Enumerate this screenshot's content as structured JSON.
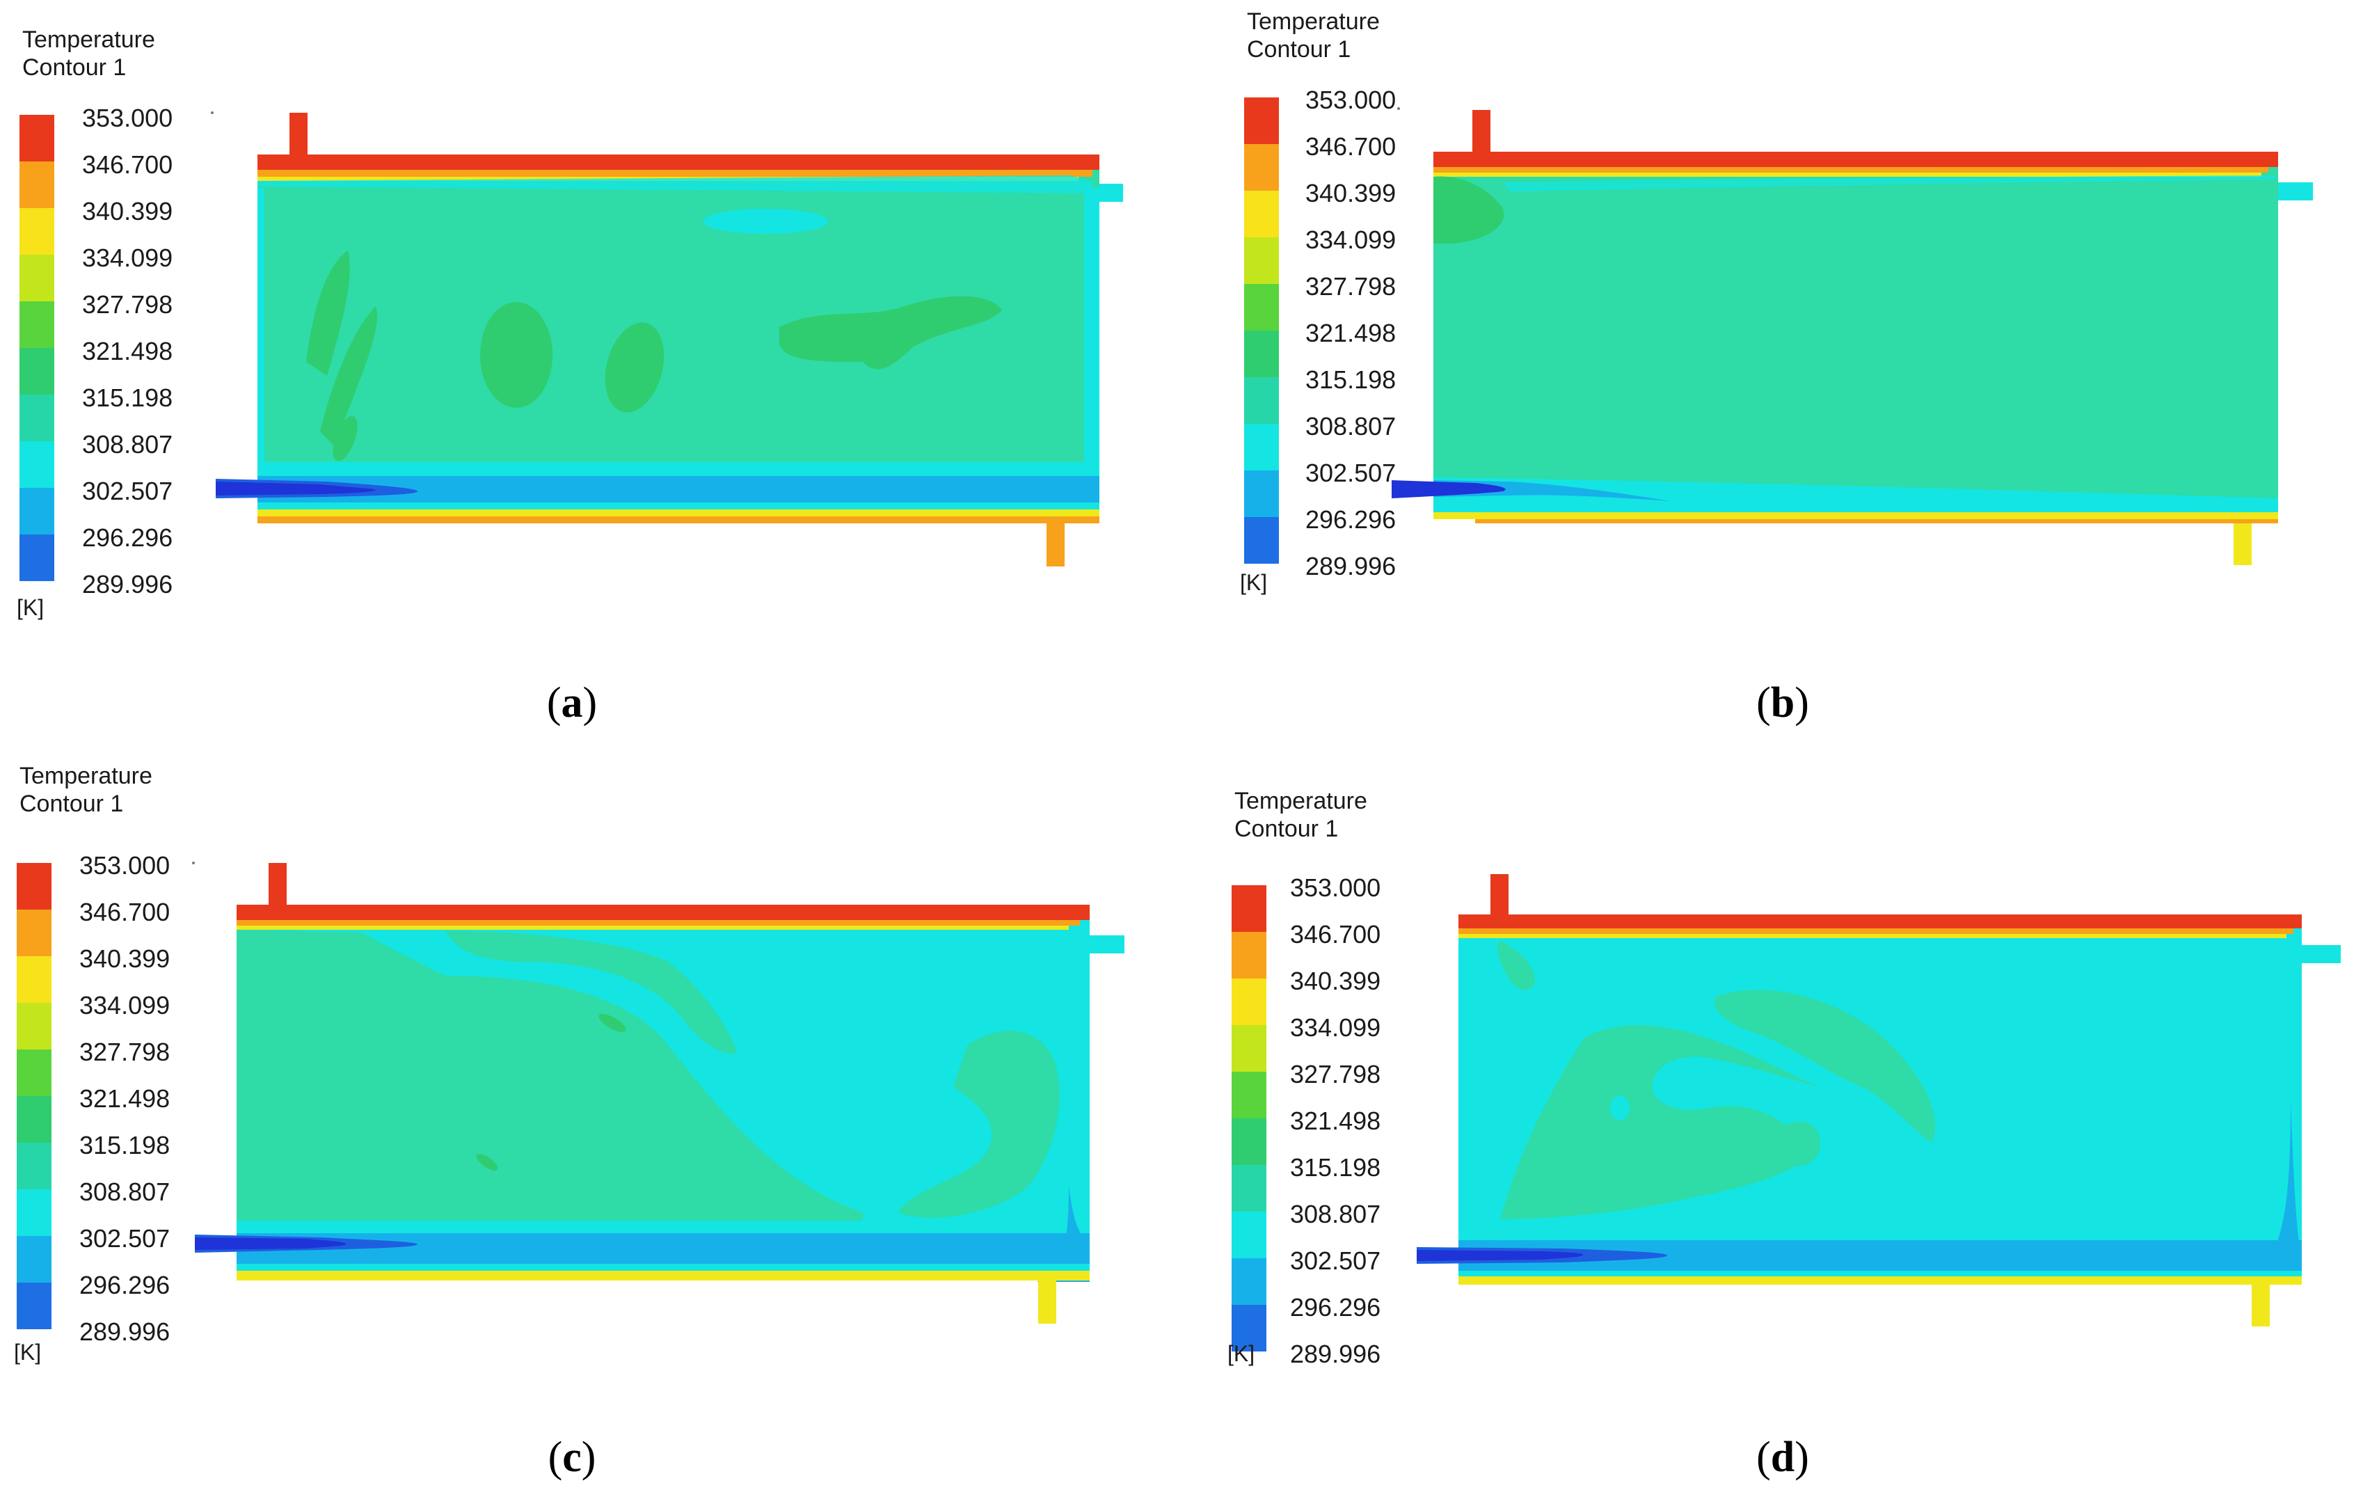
{
  "legend": {
    "title_line1": "Temperature",
    "title_line2": "Contour 1",
    "unit": "[K]",
    "values": [
      "353.000",
      "346.700",
      "340.399",
      "334.099",
      "327.798",
      "321.498",
      "315.198",
      "308.807",
      "302.507",
      "296.296",
      "289.996"
    ],
    "colors": [
      "#e8391c",
      "#f7a21a",
      "#f8e21a",
      "#c3e51c",
      "#59d43c",
      "#2fcd6f",
      "#27d6a8",
      "#14e5e3",
      "#17b1ea",
      "#1e6fe3",
      "#1e33d8"
    ]
  },
  "field_colors": {
    "hot": "#e8391c",
    "warm": "#f7a21a",
    "yellow": "#f0e81a",
    "teal": "#2fdba6",
    "cyan": "#14e5e3",
    "green": "#2fcd6f",
    "sky": "#17b1ea",
    "blue": "#1e5fe0",
    "deep": "#1e33d8"
  },
  "panels": [
    {
      "caption_open": "(",
      "caption_letter": "a",
      "caption_close": ")"
    },
    {
      "caption_open": "(",
      "caption_letter": "b",
      "caption_close": ")"
    },
    {
      "caption_open": "(",
      "caption_letter": "c",
      "caption_close": ")"
    },
    {
      "caption_open": "(",
      "caption_letter": "d",
      "caption_close": ")"
    }
  ]
}
